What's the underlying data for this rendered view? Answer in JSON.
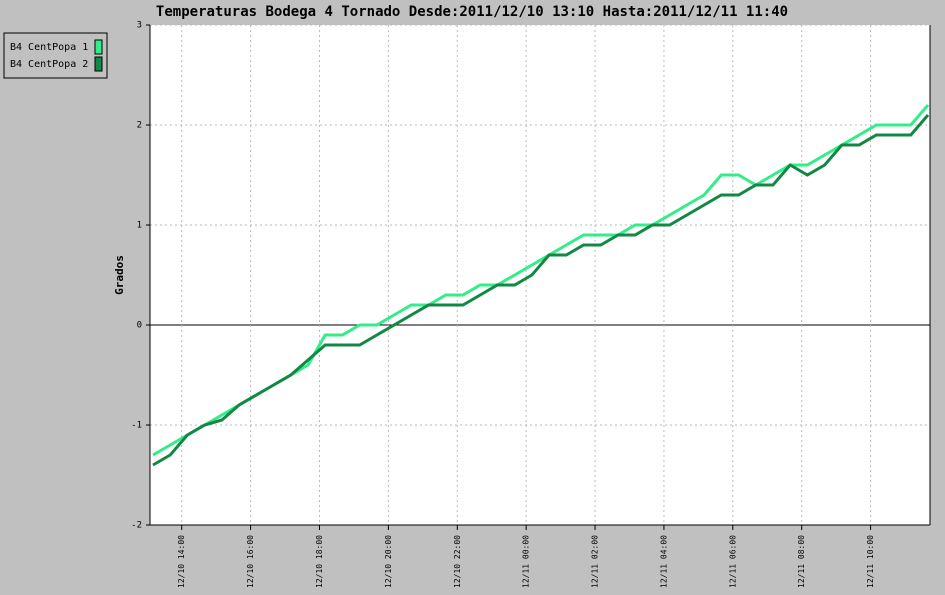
{
  "chart_data": {
    "type": "line",
    "title": "Temperaturas Bodega 4 Tornado Desde:2011/12/10 13:10 Hasta:2011/12/11 11:40",
    "y_label": "Grados",
    "x": [
      "12/10 13:10",
      "12/10 13:40",
      "12/10 14:10",
      "12/10 14:40",
      "12/10 15:10",
      "12/10 15:40",
      "12/10 16:10",
      "12/10 16:40",
      "12/10 17:10",
      "12/10 17:40",
      "12/10 18:10",
      "12/10 18:40",
      "12/10 19:10",
      "12/10 19:40",
      "12/10 20:10",
      "12/10 20:40",
      "12/10 21:10",
      "12/10 21:40",
      "12/10 22:10",
      "12/10 22:40",
      "12/10 23:10",
      "12/10 23:40",
      "12/11 00:10",
      "12/11 00:40",
      "12/11 01:10",
      "12/11 01:40",
      "12/11 02:10",
      "12/11 02:40",
      "12/11 03:10",
      "12/11 03:40",
      "12/11 04:10",
      "12/11 04:40",
      "12/11 05:10",
      "12/11 05:40",
      "12/11 06:10",
      "12/11 06:40",
      "12/11 07:10",
      "12/11 07:40",
      "12/11 08:10",
      "12/11 08:40",
      "12/11 09:10",
      "12/11 09:40",
      "12/11 10:10",
      "12/11 10:40",
      "12/11 11:10",
      "12/11 11:40"
    ],
    "series": [
      {
        "name": "B4 CentPopa 1",
        "color": "#33ee88",
        "values": [
          -1.3,
          -1.2,
          -1.1,
          -1.0,
          -0.9,
          -0.8,
          -0.7,
          -0.6,
          -0.5,
          -0.4,
          -0.1,
          -0.1,
          0.0,
          0.0,
          0.1,
          0.2,
          0.2,
          0.3,
          0.3,
          0.4,
          0.4,
          0.5,
          0.6,
          0.7,
          0.8,
          0.9,
          0.9,
          0.9,
          1.0,
          1.0,
          1.1,
          1.2,
          1.3,
          1.5,
          1.5,
          1.4,
          1.5,
          1.6,
          1.6,
          1.7,
          1.8,
          1.9,
          2.0,
          2.0,
          2.0,
          2.2
        ]
      },
      {
        "name": "B4 CentPopa 2",
        "color": "#118844",
        "values": [
          -1.4,
          -1.3,
          -1.1,
          -1.0,
          -0.95,
          -0.8,
          -0.7,
          -0.6,
          -0.5,
          -0.35,
          -0.2,
          -0.2,
          -0.2,
          -0.1,
          0.0,
          0.1,
          0.2,
          0.2,
          0.2,
          0.3,
          0.4,
          0.4,
          0.5,
          0.7,
          0.7,
          0.8,
          0.8,
          0.9,
          0.9,
          1.0,
          1.0,
          1.1,
          1.2,
          1.3,
          1.3,
          1.4,
          1.4,
          1.6,
          1.5,
          1.6,
          1.8,
          1.8,
          1.9,
          1.9,
          1.9,
          2.1
        ]
      }
    ],
    "xlim": [
      "12/10 13:10",
      "12/11 11:40"
    ],
    "xticks": [
      "12/10 14:00",
      "12/10 16:00",
      "12/10 18:00",
      "12/10 20:00",
      "12/10 22:00",
      "12/11 00:00",
      "12/11 02:00",
      "12/11 04:00",
      "12/11 06:00",
      "12/11 08:00",
      "12/11 10:00"
    ],
    "ylim": [
      -2,
      3
    ],
    "yticks": [
      -2,
      -1,
      0,
      1,
      2,
      3
    ],
    "grid": true,
    "legend": "top-left"
  }
}
